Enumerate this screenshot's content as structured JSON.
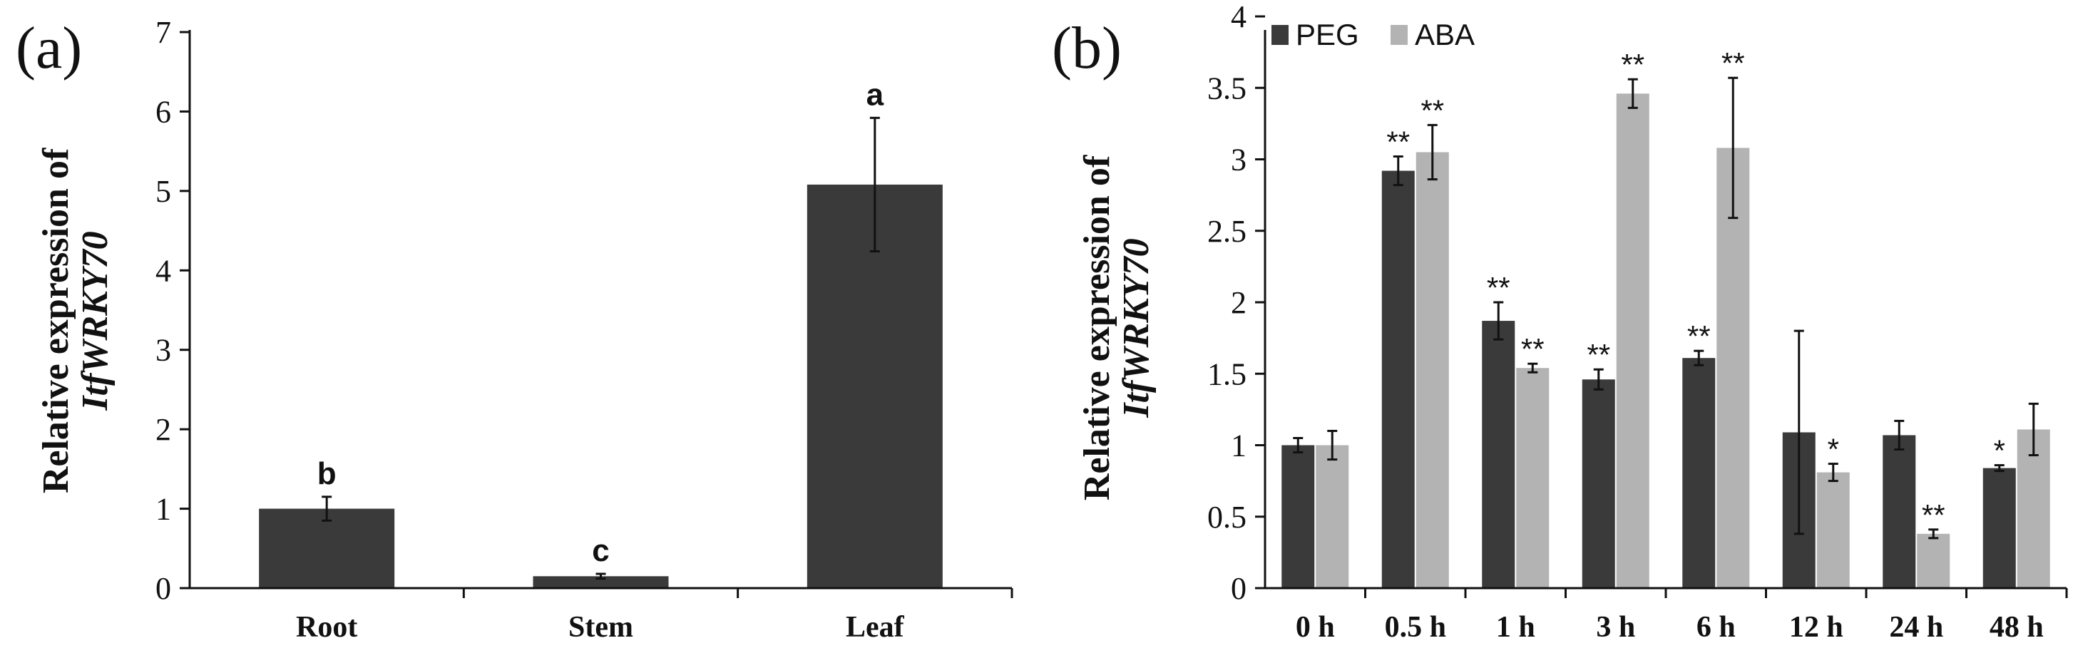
{
  "colors": {
    "dark": "#3a3a3a",
    "light": "#b3b3b3",
    "axis": "#111111"
  },
  "chart_data": [
    {
      "type": "bar",
      "panel": "(a)",
      "ylabel_line1": "Relative expression of",
      "ylabel_line2": "ItfWRKY70",
      "ylim": [
        0,
        7
      ],
      "yticks": [
        "0",
        "1",
        "2",
        "3",
        "4",
        "5",
        "6",
        "7"
      ],
      "categories": [
        "Root",
        "Stem",
        "Leaf"
      ],
      "series": [
        {
          "name": "ItfWRKY70",
          "values": [
            1.0,
            0.15,
            5.08
          ],
          "errors": [
            0.15,
            0.03,
            0.84
          ]
        }
      ],
      "letters": [
        "b",
        "c",
        "a"
      ]
    },
    {
      "type": "bar",
      "panel": "(b)",
      "ylabel_line1": "Relative expression of",
      "ylabel_line2": "ItfWRKY70",
      "ylim": [
        0,
        4
      ],
      "yticks": [
        "0",
        "0.5",
        "1",
        "1.5",
        "2",
        "2.5",
        "3",
        "3.5",
        "4"
      ],
      "categories": [
        "0 h",
        "0.5 h",
        "1 h",
        "3 h",
        "6 h",
        "12 h",
        "24 h",
        "48 h"
      ],
      "legend": [
        "PEG",
        "ABA"
      ],
      "series": [
        {
          "name": "PEG",
          "values": [
            1.0,
            2.92,
            1.87,
            1.46,
            1.61,
            1.09,
            1.07,
            0.84
          ],
          "errors": [
            0.05,
            0.1,
            0.13,
            0.07,
            0.05,
            0.71,
            0.1,
            0.02
          ],
          "stars": [
            "",
            "**",
            "**",
            "**",
            "**",
            "",
            "",
            "*"
          ]
        },
        {
          "name": "ABA",
          "values": [
            1.0,
            3.05,
            1.54,
            3.46,
            3.08,
            0.81,
            0.38,
            1.11
          ],
          "errors": [
            0.1,
            0.19,
            0.03,
            0.1,
            0.49,
            0.06,
            0.03,
            0.18
          ],
          "stars": [
            "",
            "**",
            "**",
            "**",
            "**",
            "*",
            "**",
            ""
          ]
        }
      ]
    }
  ]
}
